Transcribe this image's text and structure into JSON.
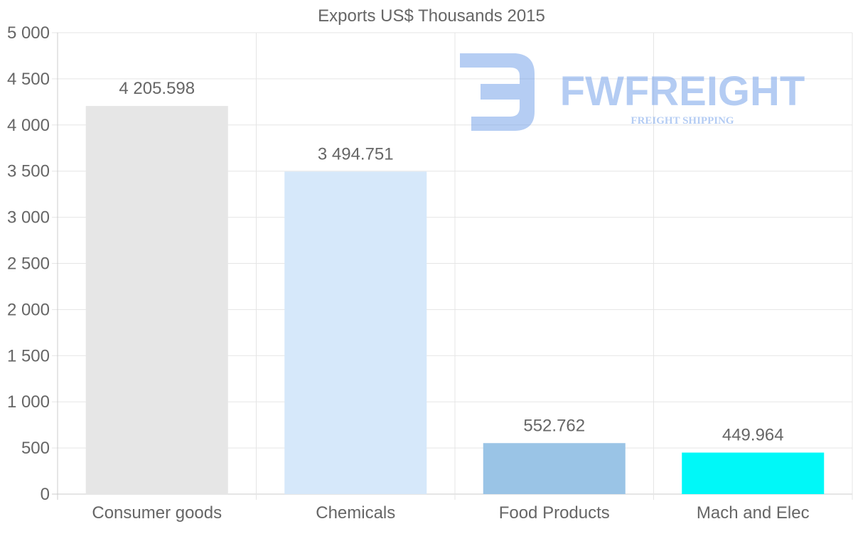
{
  "chart_data": {
    "type": "bar",
    "title": "Exports US$ Thousands 2015",
    "categories": [
      "Consumer goods",
      "Chemicals",
      "Food Products",
      "Mach and Elec"
    ],
    "values": [
      4205.598,
      3494.751,
      552.762,
      449.964
    ],
    "data_labels": [
      "4 205.598",
      "3 494.751",
      "552.762",
      "449.964"
    ],
    "colors": [
      "#e6e6e6",
      "#d6e8fa",
      "#9ac4e6",
      "#00f8f8"
    ],
    "ylim": [
      0,
      5000
    ],
    "yticks": [
      0,
      500,
      1000,
      1500,
      2000,
      2500,
      3000,
      3500,
      4000,
      4500,
      5000
    ],
    "ytick_labels": [
      "0",
      "500",
      "1 000",
      "1 500",
      "2 000",
      "2 500",
      "3 000",
      "3 500",
      "4 000",
      "4 500",
      "5 000"
    ],
    "xlabel": "",
    "ylabel": "",
    "grid": true,
    "legend": "none"
  },
  "watermark": {
    "brand": "FWFREIGHT",
    "tagline": "FREIGHT SHIPPING",
    "color": "#6b9be8"
  },
  "colors": {
    "text": "#666666",
    "grid": "#e5e5e5",
    "axis": "#cccccc"
  }
}
